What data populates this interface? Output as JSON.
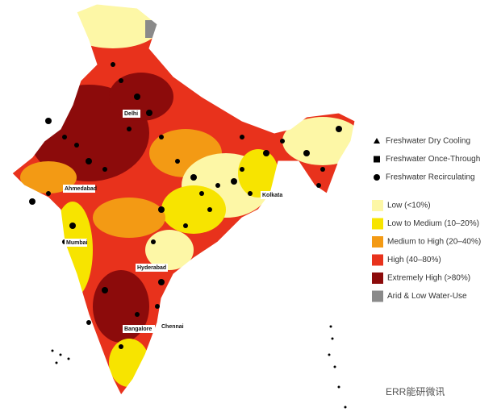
{
  "cities": [
    "Delhi",
    "Ahmedabad",
    "Kolkata",
    "Mumbai",
    "Hyderabad",
    "Bangalore",
    "Chennai"
  ],
  "legend": {
    "markers": [
      {
        "label": "Freshwater Dry Cooling",
        "shape": "triangle"
      },
      {
        "label": "Freshwater Once-Through",
        "shape": "square"
      },
      {
        "label": "Freshwater Recirculating",
        "shape": "circle"
      }
    ],
    "risk": [
      {
        "label": "Low (<10%)",
        "color": "#fdf7a6"
      },
      {
        "label": "Low to Medium (10–20%)",
        "color": "#f7e400"
      },
      {
        "label": "Medium to High (20–40%)",
        "color": "#f39a14"
      },
      {
        "label": "High (40–80%)",
        "color": "#e8321c"
      },
      {
        "label": "Extremely High (>80%)",
        "color": "#8c0b0b"
      },
      {
        "label": "Arid & Low Water-Use",
        "color": "#8a8a8a"
      }
    ]
  },
  "watermark": "ERR能研微讯"
}
